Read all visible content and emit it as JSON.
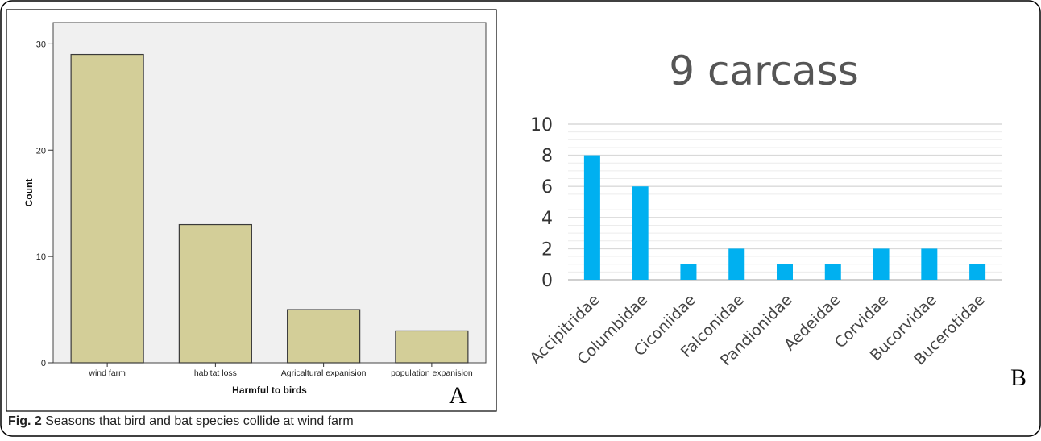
{
  "figure": {
    "caption_label": "Fig. 2",
    "caption_text": "Seasons that bird and bat species collide at wind farm"
  },
  "chart_data": [
    {
      "type": "bar",
      "panel_label": "A",
      "title": "",
      "xlabel": "Harmful to birds",
      "ylabel": "Count",
      "categories": [
        "wind farm",
        "habitat loss",
        "Agricaltural expanision",
        "population expanision"
      ],
      "values": [
        29,
        13,
        5,
        3
      ],
      "ylim": [
        0,
        32
      ],
      "yticks": [
        0,
        10,
        20,
        30
      ],
      "grid": false,
      "colors": {
        "bar": "#d3ce98",
        "bar_stroke": "#3a3a3a",
        "plot_bg": "#f0f0f0"
      }
    },
    {
      "type": "bar",
      "panel_label": "B",
      "title": "9 carcass",
      "xlabel": "",
      "ylabel": "",
      "categories": [
        "Accipitridae",
        "Columbidae",
        "Ciconiidae",
        "Falconidae",
        "Pandionidae",
        "Aedeidae",
        "Corvidae",
        "Bucorvidae",
        "Bucerotidae"
      ],
      "values": [
        8,
        6,
        1,
        2,
        1,
        1,
        2,
        2,
        1
      ],
      "ylim": [
        0,
        10
      ],
      "yticks": [
        0,
        2,
        4,
        6,
        8,
        10
      ],
      "grid": true,
      "colors": {
        "bar": "#00b0f0",
        "grid_major": "#d9d9d9",
        "grid_minor": "#ececec"
      }
    }
  ]
}
